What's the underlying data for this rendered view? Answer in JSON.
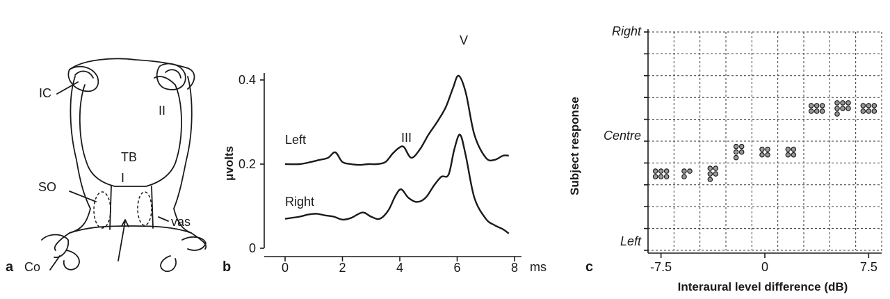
{
  "panel_a": {
    "letter": "a",
    "labels": {
      "ic": "IC",
      "ii": "II",
      "tb": "TB",
      "i": "I",
      "so": "SO",
      "vas": "vas",
      "co": "Co"
    }
  },
  "panel_b": {
    "letter": "b",
    "ylabel": "μvolts",
    "x_unit": "ms",
    "trace_labels": {
      "left": "Left",
      "right": "Right"
    },
    "peak_labels": {
      "iii": "III",
      "v": "V"
    }
  },
  "panel_c": {
    "letter": "c",
    "xlabel": "Interaural level difference (dB)",
    "ylabel": "Subject response",
    "y_tick_labels": {
      "right": "Right",
      "centre": "Centre",
      "left": "Left"
    }
  },
  "chart_data": [
    {
      "type": "line",
      "title": "",
      "xlabel": "",
      "ylabel": "μvolts",
      "x_unit": "ms",
      "xlim": [
        0,
        8
      ],
      "ylim": [
        0,
        0.42
      ],
      "x_ticks": [
        0,
        2,
        4,
        6,
        8
      ],
      "y_ticks": [
        0,
        0.2,
        0.4
      ],
      "series": [
        {
          "name": "Left",
          "x": [
            0,
            0.5,
            0.9,
            1.2,
            1.5,
            1.75,
            2.0,
            2.3,
            2.6,
            2.9,
            3.2,
            3.5,
            3.75,
            4.0,
            4.15,
            4.4,
            4.7,
            5.0,
            5.3,
            5.6,
            5.85,
            6.05,
            6.3,
            6.6,
            7.0,
            7.3,
            7.6,
            7.8
          ],
          "y": [
            0.2,
            0.2,
            0.205,
            0.21,
            0.215,
            0.228,
            0.205,
            0.2,
            0.198,
            0.2,
            0.2,
            0.205,
            0.225,
            0.24,
            0.24,
            0.215,
            0.235,
            0.27,
            0.3,
            0.335,
            0.38,
            0.41,
            0.37,
            0.27,
            0.215,
            0.21,
            0.22,
            0.22
          ]
        },
        {
          "name": "Right",
          "x": [
            0,
            0.5,
            0.8,
            1.1,
            1.4,
            1.7,
            2.0,
            2.3,
            2.7,
            3.0,
            3.3,
            3.6,
            3.85,
            4.05,
            4.3,
            4.6,
            4.9,
            5.2,
            5.45,
            5.7,
            5.9,
            6.1,
            6.3,
            6.6,
            7.0,
            7.3,
            7.6,
            7.8
          ],
          "y": [
            0.07,
            0.075,
            0.08,
            0.082,
            0.078,
            0.075,
            0.068,
            0.072,
            0.085,
            0.075,
            0.07,
            0.09,
            0.125,
            0.14,
            0.12,
            0.11,
            0.12,
            0.15,
            0.17,
            0.175,
            0.235,
            0.27,
            0.22,
            0.12,
            0.07,
            0.055,
            0.045,
            0.035
          ]
        }
      ],
      "annotations": [
        {
          "text": "III",
          "x": 4.15
        },
        {
          "text": "V",
          "x": 6.05
        }
      ]
    },
    {
      "type": "scatter",
      "title": "",
      "xlabel": "Interaural level difference (dB)",
      "ylabel": "Subject response",
      "x_tick_labels": [
        "-7.5",
        "0",
        "7.5"
      ],
      "x_tick_values": [
        -7.5,
        0,
        7.5
      ],
      "x_values": [
        -7.5,
        -5.5,
        -3.75,
        -1.9,
        0,
        1.9,
        3.75,
        5.5,
        7.5
      ],
      "y_categories": [
        "Left",
        "",
        "",
        "",
        "",
        "Centre",
        "",
        "",
        "",
        "",
        "Right"
      ],
      "grid": true,
      "points": [
        {
          "x": -7.5,
          "response_level": 3.5,
          "count": 6
        },
        {
          "x": -5.5,
          "response_level": 3.5,
          "count": 3
        },
        {
          "x": -3.75,
          "response_level": 3.5,
          "count": 5
        },
        {
          "x": -1.9,
          "response_level": 4.5,
          "count": 5
        },
        {
          "x": 0,
          "response_level": 4.5,
          "count": 4
        },
        {
          "x": 1.9,
          "response_level": 4.5,
          "count": 4
        },
        {
          "x": 3.75,
          "response_level": 6.5,
          "count": 6
        },
        {
          "x": 5.5,
          "response_level": 6.5,
          "count": 7
        },
        {
          "x": 7.5,
          "response_level": 6.5,
          "count": 6
        }
      ]
    }
  ]
}
